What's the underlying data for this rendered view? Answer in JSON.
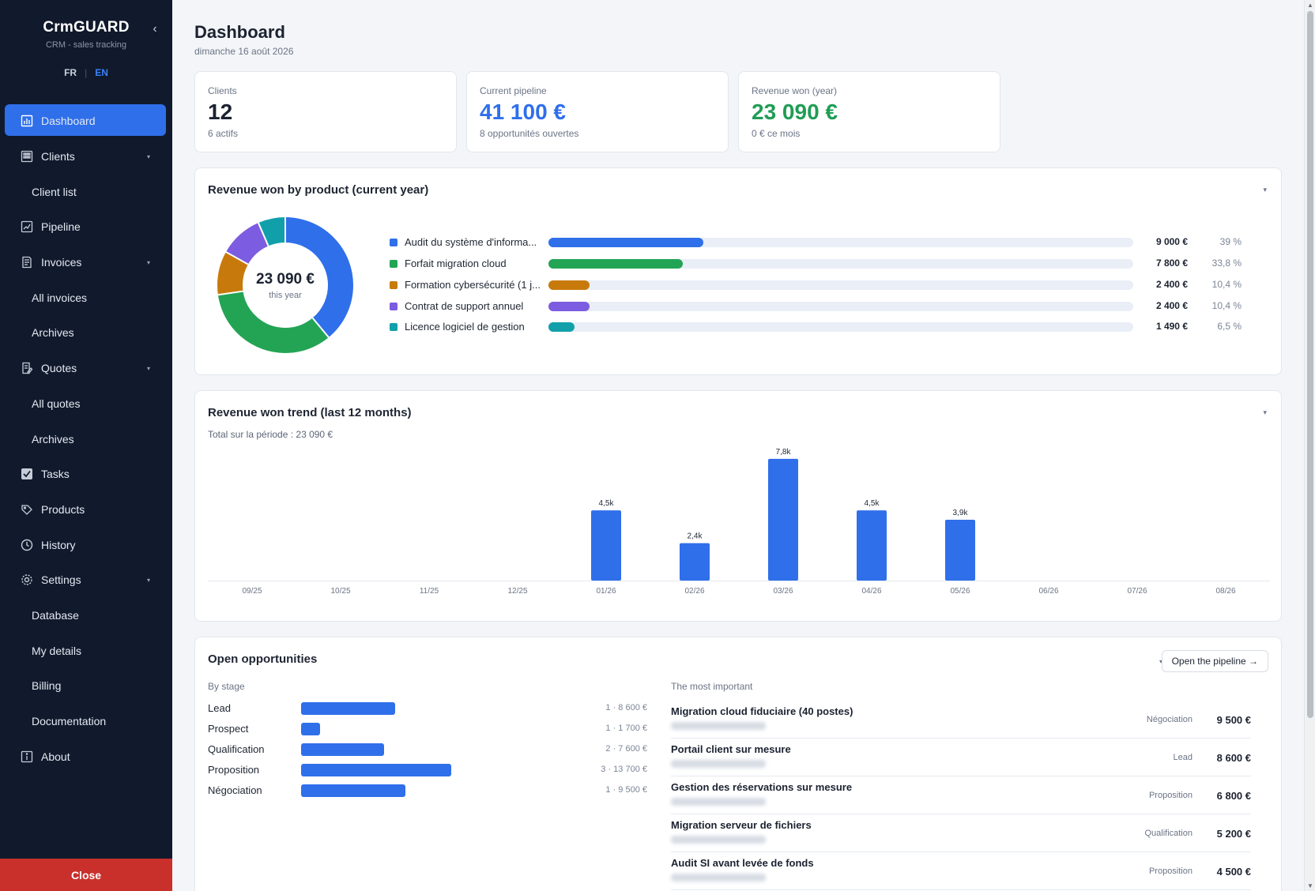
{
  "sidebar": {
    "brand": "CrmGUARD",
    "subtitle": "CRM - sales tracking",
    "collapse_icon": "chevron-left-icon",
    "lang_fr": "FR",
    "lang_sep": "|",
    "lang_en": "EN",
    "items": [
      {
        "label": "Dashboard",
        "icon": "dashboard-icon"
      },
      {
        "label": "Clients",
        "icon": "clients-icon"
      },
      {
        "label": "Client list"
      },
      {
        "label": "Pipeline",
        "icon": "pipeline-icon"
      },
      {
        "label": "Invoices",
        "icon": "invoices-icon"
      },
      {
        "label": "All invoices"
      },
      {
        "label": "Archives"
      },
      {
        "label": "Quotes",
        "icon": "quotes-icon"
      },
      {
        "label": "All quotes"
      },
      {
        "label": "Archives"
      },
      {
        "label": "Tasks",
        "icon": "tasks-icon"
      },
      {
        "label": "Products",
        "icon": "products-icon"
      },
      {
        "label": "History",
        "icon": "history-icon"
      },
      {
        "label": "Settings",
        "icon": "settings-icon"
      },
      {
        "label": "Database"
      },
      {
        "label": "My details"
      },
      {
        "label": "Billing"
      },
      {
        "label": "Documentation"
      },
      {
        "label": "About",
        "icon": "about-icon"
      }
    ],
    "close_label": "Close"
  },
  "header": {
    "title": "Dashboard",
    "date": "dimanche 16 août 2026"
  },
  "kpis": [
    {
      "label": "Clients",
      "value": "12",
      "sub": "6 actifs",
      "color": "#1b2230"
    },
    {
      "label": "Current pipeline",
      "value": "41 100 €",
      "sub": "8 opportunités ouvertes",
      "color": "#2f6fea"
    },
    {
      "label": "Revenue won (year)",
      "value": "23 090 €",
      "sub": "0 € ce mois",
      "color": "#1f9d55"
    }
  ],
  "product_panel": {
    "title": "Revenue won by product (current year)",
    "total": "23 090 €",
    "total_sub": "this year",
    "products": [
      {
        "name": "Audit du système d'informa...",
        "amount": "9 000 €",
        "pct": "39 %",
        "fraction": 0.39,
        "color": "#2f6fea"
      },
      {
        "name": "Forfait migration cloud",
        "amount": "7 800 €",
        "pct": "33,8 %",
        "fraction": 0.338,
        "color": "#23a455"
      },
      {
        "name": "Formation cybersécurité (1 j...",
        "amount": "2 400 €",
        "pct": "10,4 %",
        "fraction": 0.104,
        "color": "#c77a0b"
      },
      {
        "name": "Contrat de support annuel",
        "amount": "2 400 €",
        "pct": "10,4 %",
        "fraction": 0.104,
        "color": "#7c5ce0"
      },
      {
        "name": "Licence logiciel de gestion",
        "amount": "1 490 €",
        "pct": "6,5 %",
        "fraction": 0.065,
        "color": "#11a0aa"
      }
    ]
  },
  "trend_panel": {
    "title": "Revenue won trend (last 12 months)",
    "subtitle": "Total sur la période : 23 090 €"
  },
  "chart_data": {
    "type": "bar",
    "categories": [
      "09/25",
      "10/25",
      "11/25",
      "12/25",
      "01/26",
      "02/26",
      "03/26",
      "04/26",
      "05/26",
      "06/26",
      "07/26",
      "08/26"
    ],
    "values": [
      0,
      0,
      0,
      0,
      4500,
      2400,
      7800,
      4500,
      3900,
      0,
      0,
      0
    ],
    "labels": [
      "",
      "",
      "",
      "",
      "4,5k",
      "2,4k",
      "7,8k",
      "4,5k",
      "3,9k",
      "",
      "",
      ""
    ],
    "ylim": [
      0,
      8200
    ],
    "grid": false,
    "color": "#2f6fea"
  },
  "opportunities": {
    "title": "Open opportunities",
    "button_label": "Open the pipeline →",
    "by_stage_label": "By stage",
    "important_label": "The most important",
    "stages": [
      {
        "name": "Lead",
        "count": 1,
        "amount": 8600,
        "text": "1 · 8 600 €"
      },
      {
        "name": "Prospect",
        "count": 1,
        "amount": 1700,
        "text": "1 · 1 700 €"
      },
      {
        "name": "Qualification",
        "count": 2,
        "amount": 7600,
        "text": "2 · 7 600 €"
      },
      {
        "name": "Proposition",
        "count": 3,
        "amount": 13700,
        "text": "3 · 13 700 €"
      },
      {
        "name": "Négociation",
        "count": 1,
        "amount": 9500,
        "text": "1 · 9 500 €"
      }
    ],
    "items": [
      {
        "name": "Migration cloud fiduciaire (40 postes)",
        "stage": "Négociation",
        "amount": "9 500 €"
      },
      {
        "name": "Portail client sur mesure",
        "stage": "Lead",
        "amount": "8 600 €"
      },
      {
        "name": "Gestion des réservations sur mesure",
        "stage": "Proposition",
        "amount": "6 800 €"
      },
      {
        "name": "Migration serveur de fichiers",
        "stage": "Qualification",
        "amount": "5 200 €"
      },
      {
        "name": "Audit SI avant levée de fonds",
        "stage": "Proposition",
        "amount": "4 500 €"
      }
    ]
  }
}
